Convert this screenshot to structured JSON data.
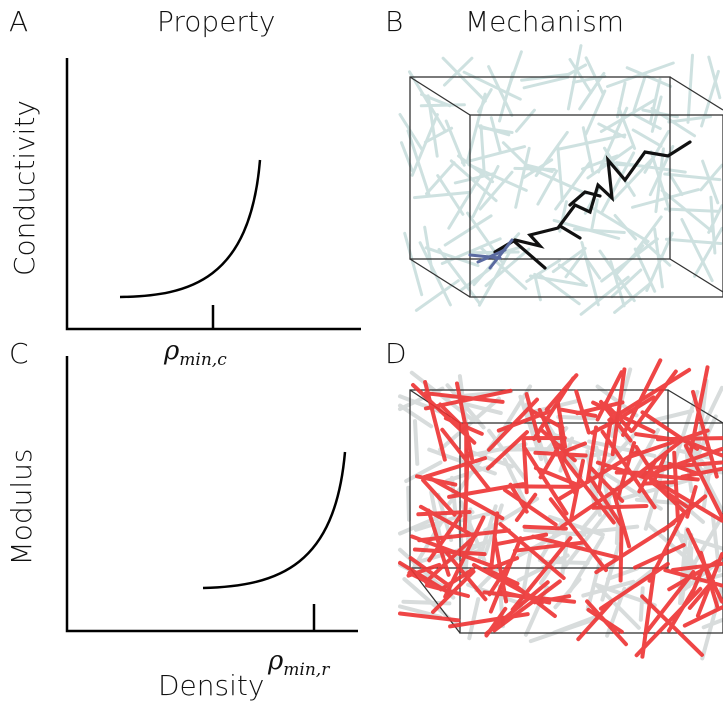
{
  "panels": {
    "a": {
      "letter": "A",
      "title": "Property",
      "ylabel": "Conductivity",
      "threshold_symbol": "ρ",
      "threshold_sub": "min,c"
    },
    "b": {
      "letter": "B",
      "title": "Mechanism"
    },
    "c": {
      "letter": "C",
      "ylabel": "Modulus",
      "threshold_symbol": "ρ",
      "threshold_sub": "min,r"
    },
    "d": {
      "letter": "D"
    }
  },
  "xlabel": "Density",
  "colors": {
    "axis": "#000000",
    "conductive_rods": "#c9dedd",
    "percolating_path": "#111111",
    "path_start": "#5a6aa0",
    "rigid_rods": "#ee3333",
    "background_rods": "#d8dcdc",
    "box": "#333333"
  }
}
